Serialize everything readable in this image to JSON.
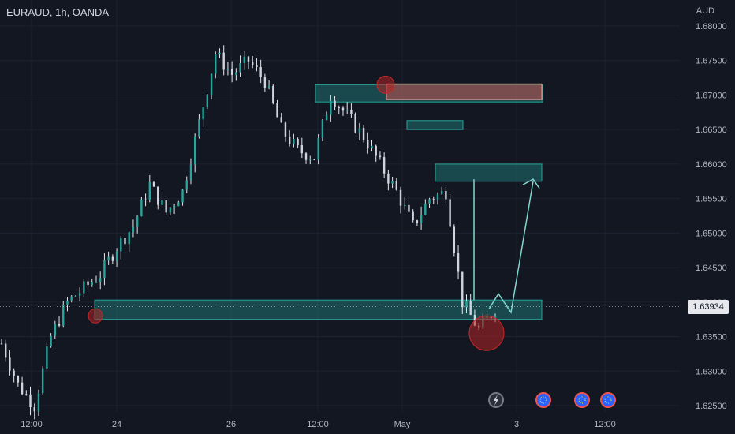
{
  "header": {
    "symbol": "EURAUD, 1h, OANDA",
    "currency": "AUD"
  },
  "last_price": "1.63934",
  "colors": {
    "background": "#131722",
    "candle_body": "#26a69a",
    "candle_wick": "#e6e8ee",
    "zone_fill": "rgba(38,166,154,0.35)",
    "zone_border": "#26a69a",
    "supply_fill": "rgba(239,83,80,0.45)",
    "circle_fill": "rgba(178,34,34,0.55)",
    "axis_text": "#b2b5be"
  },
  "events": [
    {
      "icon": "lightning-icon"
    },
    {
      "icon": "eu-flag-icon"
    },
    {
      "icon": "australia-flag-icon"
    },
    {
      "icon": "eu-flag-icon"
    }
  ],
  "chart_data": {
    "type": "candlestick",
    "title": "EURAUD, 1h, OANDA",
    "ylabel": "AUD",
    "ylim": [
      1.625,
      1.68
    ],
    "x_ticks": [
      "12:00",
      "24",
      "26",
      "12:00",
      "May",
      "3",
      "12:00"
    ],
    "y_ticks": [
      "1.68000",
      "1.67500",
      "1.67000",
      "1.66500",
      "1.66000",
      "1.65500",
      "1.65000",
      "1.64500",
      "1.64000",
      "1.63500",
      "1.63000",
      "1.62500"
    ],
    "approx_close_path": [
      1.634,
      1.628,
      1.625,
      1.635,
      1.64,
      1.642,
      1.644,
      1.648,
      1.651,
      1.657,
      1.653,
      1.656,
      1.666,
      1.676,
      1.673,
      1.675,
      1.672,
      1.665,
      1.662,
      1.661,
      1.67,
      1.667,
      1.664,
      1.66,
      1.656,
      1.651,
      1.655,
      1.656,
      1.64,
      1.636,
      1.639
    ],
    "zones": [
      {
        "kind": "demand",
        "from": 1.6375,
        "to": 1.6403
      },
      {
        "kind": "supply",
        "from": 1.669,
        "to": 1.6715
      },
      {
        "kind": "demand",
        "from": 1.665,
        "to": 1.6663
      },
      {
        "kind": "demand",
        "from": 1.6575,
        "to": 1.66
      }
    ],
    "last_price": 1.63934
  }
}
